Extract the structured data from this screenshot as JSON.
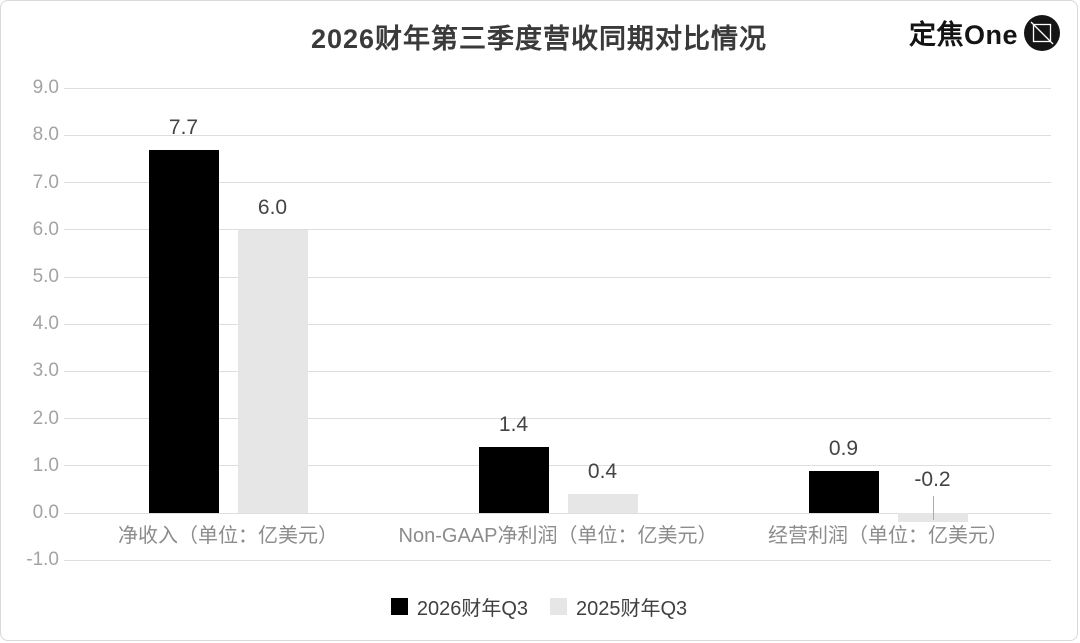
{
  "header": {
    "title": "2026财年第三季度营收同期对比情况",
    "brand": "定焦One",
    "brand_icon": "focus-lens-icon"
  },
  "chart_data": {
    "type": "bar",
    "title": "2026财年第三季度营收同期对比情况",
    "categories": [
      "净收入（单位：亿美元）",
      "Non-GAAP净利润（单位：亿美元）",
      "经营利润（单位：亿美元）"
    ],
    "series": [
      {
        "name": "2026财年Q3",
        "color": "#000000",
        "values": [
          7.7,
          1.4,
          0.9
        ]
      },
      {
        "name": "2025财年Q3",
        "color": "#e6e6e6",
        "values": [
          6.0,
          0.4,
          -0.2
        ]
      }
    ],
    "xlabel": "",
    "ylabel": "",
    "ylim": [
      -1.0,
      9.0
    ],
    "ytick_step": 1.0,
    "ytick_labels": [
      "9.0",
      "8.0",
      "7.0",
      "6.0",
      "5.0",
      "4.0",
      "3.0",
      "2.0",
      "1.0",
      "0.0",
      "-1.0"
    ],
    "grid": true,
    "legend_position": "bottom",
    "styles": {
      "gridline_color": "#dedede",
      "ytick_color": "#a3a3a3",
      "category_color": "#8c8c8c",
      "value_label_color": "#444444",
      "title_color": "#3a3a3a",
      "frame_border_color": "#d9d9d9"
    }
  }
}
